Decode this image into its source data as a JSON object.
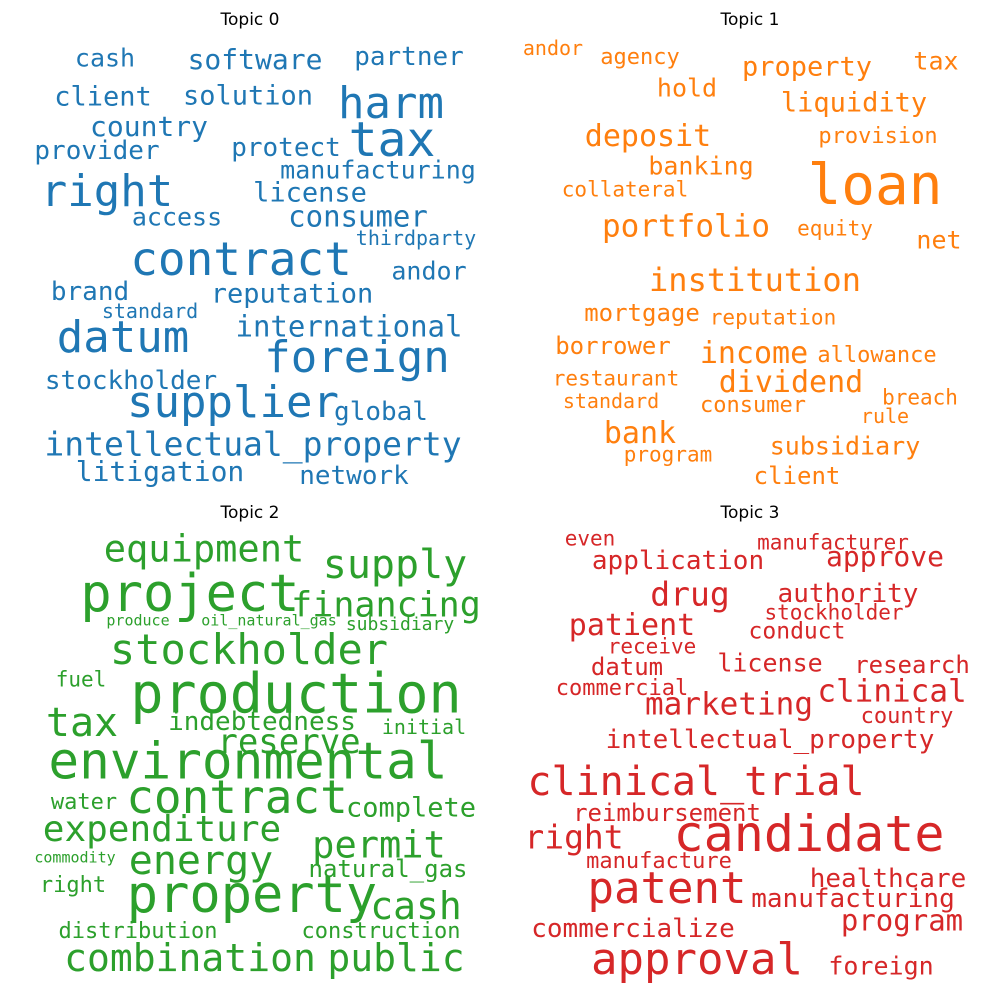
{
  "topics": [
    {
      "title": "Topic 0",
      "color": "#1f77b4",
      "words": [
        "cash",
        "software",
        "partner",
        "harm",
        "client",
        "solution",
        "tax",
        "country",
        "provider",
        "protect",
        "manufacturing",
        "right",
        "license",
        "consumer",
        "access",
        "thirdparty",
        "contract",
        "andor",
        "brand",
        "reputation",
        "standard",
        "international",
        "datum",
        "foreign",
        "stockholder",
        "supplier",
        "global",
        "intellectual_property",
        "litigation",
        "network"
      ]
    },
    {
      "title": "Topic 1",
      "color": "#ff7f0e",
      "words": [
        "andor",
        "agency",
        "tax",
        "property",
        "hold",
        "liquidity",
        "deposit",
        "provision",
        "loan",
        "banking",
        "collateral",
        "portfolio",
        "equity",
        "net",
        "institution",
        "mortgage",
        "reputation",
        "borrower",
        "income",
        "allowance",
        "dividend",
        "restaurant",
        "breach",
        "standard",
        "consumer",
        "rule",
        "bank",
        "subsidiary",
        "program",
        "client"
      ]
    },
    {
      "title": "Topic 2",
      "color": "#2ca02c",
      "words": [
        "equipment",
        "supply",
        "project",
        "financing",
        "produce",
        "oil_natural_gas",
        "subsidiary",
        "stockholder",
        "fuel",
        "production",
        "tax",
        "indebtedness",
        "initial",
        "reserve",
        "environmental",
        "contract",
        "water",
        "complete",
        "expenditure",
        "permit",
        "energy",
        "commodity",
        "natural_gas",
        "right",
        "property",
        "cash",
        "distribution",
        "construction",
        "combination",
        "public"
      ]
    },
    {
      "title": "Topic 3",
      "color": "#d62728",
      "words": [
        "even",
        "manufacturer",
        "application",
        "approve",
        "drug",
        "authority",
        "stockholder",
        "patient",
        "conduct",
        "receive",
        "datum",
        "license",
        "research",
        "commercial",
        "clinical",
        "marketing",
        "country",
        "intellectual_property",
        "clinical_trial",
        "reimbursement",
        "right",
        "candidate",
        "manufacture",
        "healthcare",
        "patent",
        "manufacturing",
        "program",
        "commercialize",
        "approval",
        "foreign"
      ]
    }
  ]
}
